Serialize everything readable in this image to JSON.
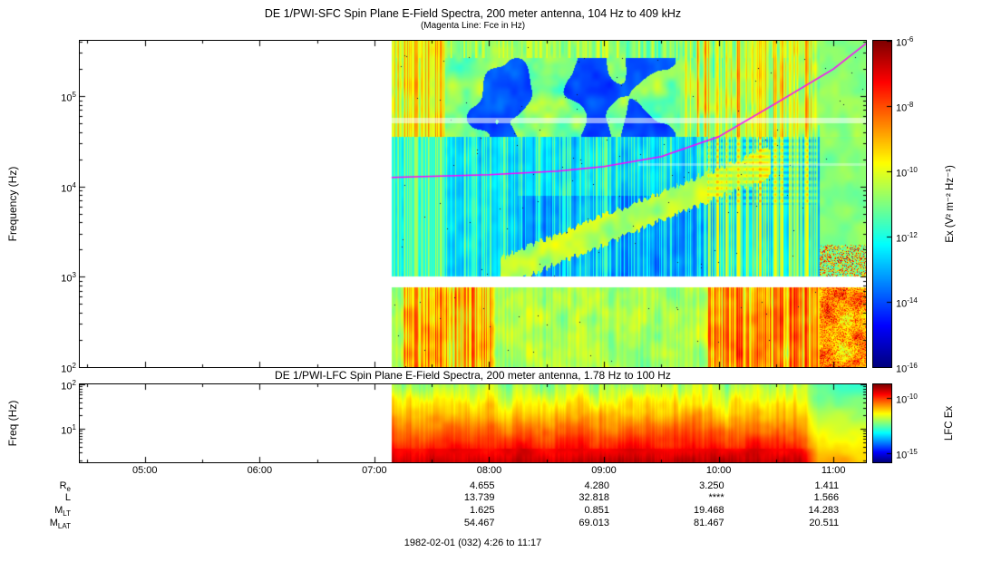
{
  "titles": {
    "sfc_title": "DE 1/PWI-SFC  Spin Plane E-Field Spectra, 200 meter antenna, 104 Hz to 409 kHz",
    "sfc_subtitle": "(Magenta Line: Fce in Hz)",
    "lfc_title": "DE 1/PWI-LFC  Spin Plane E-Field Spectra, 200 meter antenna, 1.78 Hz to 100 Hz",
    "footer": "1982-02-01 (032) 4:26 to 11:17"
  },
  "axes": {
    "sfc": {
      "ylabel": "Frequency (Hz)",
      "yticks": [
        {
          "exp": "5",
          "lf": 5
        },
        {
          "exp": "4",
          "lf": 4
        },
        {
          "exp": "3",
          "lf": 3
        },
        {
          "exp": "2",
          "lf": 2
        }
      ]
    },
    "lfc": {
      "ylabel": "Freq (Hz)",
      "yticks": [
        {
          "exp": "2",
          "lf": 2
        },
        {
          "exp": "1",
          "lf": 1
        }
      ]
    },
    "time": {
      "ticks": [
        {
          "label": "05:00",
          "h": 5
        },
        {
          "label": "06:00",
          "h": 6
        },
        {
          "label": "07:00",
          "h": 7
        },
        {
          "label": "08:00",
          "h": 8
        },
        {
          "label": "09:00",
          "h": 9
        },
        {
          "label": "10:00",
          "h": 10
        },
        {
          "label": "11:00",
          "h": 11
        }
      ]
    }
  },
  "colorbars": {
    "sfc": {
      "label": "Ex (V² m⁻² Hz⁻¹)",
      "ticks": [
        {
          "exp": "-6",
          "frac": 1.0
        },
        {
          "exp": "-8",
          "frac": 0.8
        },
        {
          "exp": "-10",
          "frac": 0.6
        },
        {
          "exp": "-12",
          "frac": 0.4
        },
        {
          "exp": "-14",
          "frac": 0.2
        },
        {
          "exp": "-16",
          "frac": 0.0
        }
      ]
    },
    "lfc": {
      "label": "LFC Ex",
      "ticks": [
        {
          "exp": "-10",
          "frac": 0.82
        },
        {
          "exp": "-15",
          "frac": 0.12
        }
      ]
    }
  },
  "ephemeris": {
    "column_hours": [
      8,
      9,
      10,
      11
    ],
    "rows": [
      {
        "label": "R",
        "sub": "e",
        "values": [
          "4.655",
          "4.280",
          "3.250",
          "1.411"
        ]
      },
      {
        "label": "L",
        "sub": "",
        "values": [
          "13.739",
          "32.818",
          "****",
          "1.566"
        ]
      },
      {
        "label": "M",
        "sub": "LT",
        "values": [
          "1.625",
          "0.851",
          "19.468",
          "14.283"
        ]
      },
      {
        "label": "M",
        "sub": "LAT",
        "values": [
          "54.467",
          "69.013",
          "81.467",
          "20.511"
        ]
      }
    ]
  },
  "chart_data": [
    {
      "type": "heatmap",
      "name": "sfc_spectrogram",
      "title": "DE 1/PWI-SFC Spin Plane E-Field Spectra, 200 meter antenna, 104 Hz to 409 kHz",
      "subtitle": "(Magenta Line: Fce in Hz)",
      "ylabel": "Frequency (Hz)",
      "y_scale": "log",
      "y_range_hz": [
        100,
        409000
      ],
      "y_tick_labels": [
        "10²",
        "10³",
        "10⁴",
        "10⁵"
      ],
      "x_range_hours": [
        4.433,
        11.283
      ],
      "x_tick_hours": [
        5,
        6,
        7,
        8,
        9,
        10,
        11
      ],
      "x_tick_labels": [
        "05:00",
        "06:00",
        "07:00",
        "08:00",
        "09:00",
        "10:00",
        "11:00"
      ],
      "colorbar": {
        "label": "Ex (V² m⁻² Hz⁻¹)",
        "scale": "log",
        "range": [
          1e-16,
          1e-06
        ],
        "tick_exponents": [
          -6,
          -8,
          -10,
          -12,
          -14,
          -16
        ],
        "colormap": "rainbow blue(low) to red(high)"
      },
      "data_start_hour": 7.15,
      "gap_band_hz": [
        760,
        1000
      ],
      "light_bands_hz": [
        [
          50000,
          58000
        ]
      ],
      "fce_line": {
        "color": "#ff00ff",
        "label": "Fce",
        "points": [
          {
            "h": 7.15,
            "log10f": 4.1
          },
          {
            "h": 8.0,
            "log10f": 4.13
          },
          {
            "h": 8.6,
            "log10f": 4.17
          },
          {
            "h": 9.0,
            "log10f": 4.22
          },
          {
            "h": 9.5,
            "log10f": 4.33
          },
          {
            "h": 10.0,
            "log10f": 4.55
          },
          {
            "h": 10.5,
            "log10f": 4.92
          },
          {
            "h": 11.0,
            "log10f": 5.3
          },
          {
            "h": 11.283,
            "log10f": 5.58
          }
        ]
      },
      "features": [
        "No data (white) before ~07:09 UT",
        "White instrument gap band near 0.8-1.0 kHz across the entire plot",
        "Intense bursty broadband emission below 1 kHz with yellow/orange vertical streaks ~07:15-08:00 and ~09:55-10:50",
        "Speckled green/yellow/red patch below ~2 kHz after ~10:50",
        "Low-intensity dark blue region between ~1 kHz and ~300 kHz with patchy cyan/green structure",
        "Cyan band rising from ~1 kHz at 08:10 to ~10 kHz at 10:20 (auroral hiss funnel)",
        "Bright green vertical bursts at all frequencies ~09:40-10:50",
        "Smooth cyan region in upper right after ~10:50",
        "Thin light horizontal interference line near 50-60 kHz",
        "Magenta Fce line rises from ~13 kHz at 07:09 to ~380 kHz at 11:17"
      ]
    },
    {
      "type": "heatmap",
      "name": "lfc_spectrogram",
      "title": "DE 1/PWI-LFC Spin Plane E-Field Spectra, 200 meter antenna, 1.78 Hz to 100 Hz",
      "ylabel": "Freq (Hz)",
      "y_scale": "log",
      "y_range_hz": [
        1.78,
        100
      ],
      "y_tick_labels": [
        "10¹",
        "10²"
      ],
      "x_range_hours": [
        4.433,
        11.283
      ],
      "colorbar": {
        "label": "LFC Ex",
        "scale": "log",
        "tick_exponents": [
          -10,
          -15
        ],
        "colormap": "rainbow blue(low) to red(high)"
      },
      "data_start_hour": 7.15,
      "features": [
        "No data (white) before ~07:09 UT",
        "Saturated red broadband emission at lowest frequencies from 07:09 to ~10:45",
        "Yellow/orange vertical striping between 10 and 100 Hz",
        "Weaker green/yellow levels with cyan at top after ~10:50"
      ]
    }
  ]
}
